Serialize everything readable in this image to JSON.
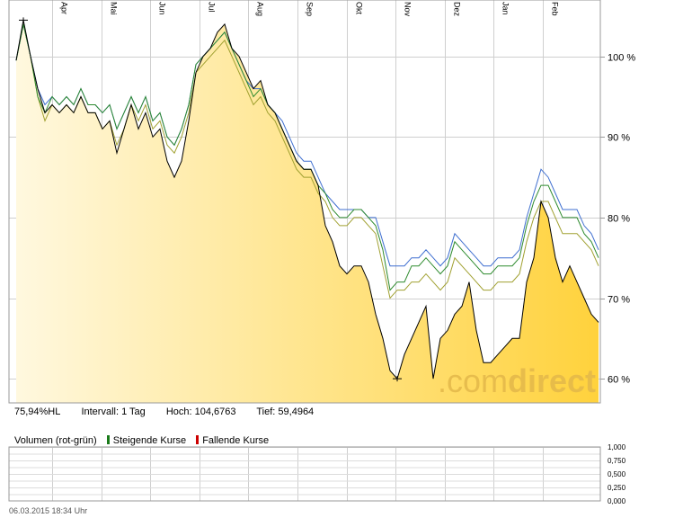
{
  "chart_data": {
    "type": "line",
    "months": [
      "Apr",
      "Mai",
      "Jun",
      "Jul",
      "Aug",
      "Sep",
      "Okt",
      "Nov",
      "Dez",
      "Jan",
      "Feb"
    ],
    "yticks": [
      "100 %",
      "90 %",
      "80 %",
      "70 %",
      "60 %"
    ],
    "ytick_values": [
      100,
      90,
      80,
      70,
      60
    ],
    "ylim": [
      57,
      107
    ],
    "series": [
      {
        "values": [
          99.5,
          104.5,
          100,
          96,
          93,
          94,
          93,
          94,
          93,
          95,
          93,
          93,
          91,
          92,
          88,
          91,
          94,
          91,
          93,
          90,
          91,
          87,
          85,
          87,
          92,
          98,
          100,
          101,
          103,
          104,
          101,
          100,
          98,
          96,
          97,
          94,
          93,
          91,
          89,
          87,
          86,
          86,
          84,
          79,
          77,
          74,
          73,
          74,
          74,
          72,
          68,
          65,
          61,
          60,
          63,
          65,
          67,
          69,
          60,
          65,
          66,
          68,
          69,
          72,
          66,
          62,
          62,
          63,
          64,
          65,
          65,
          72,
          75,
          82,
          80,
          75,
          72,
          74,
          72,
          70,
          68,
          67
        ]
      },
      {
        "values": [
          99.5,
          104,
          100,
          95,
          93,
          95,
          94,
          95,
          94,
          96,
          94,
          94,
          93,
          94,
          91,
          93,
          95,
          93,
          95,
          92,
          93,
          90,
          89,
          91,
          94,
          99,
          100,
          101,
          102,
          103,
          101,
          99,
          97,
          95,
          96,
          94,
          93,
          91,
          89,
          87,
          86,
          86,
          84,
          83,
          81,
          80,
          80,
          81,
          81,
          80,
          79,
          76,
          71,
          72,
          72,
          74,
          74,
          75,
          74,
          73,
          74,
          77,
          76,
          75,
          74,
          73,
          73,
          74,
          74,
          74,
          75,
          79,
          82,
          84,
          84,
          82,
          80,
          80,
          80,
          78,
          77,
          75
        ]
      },
      {
        "values": [
          99.5,
          104,
          100,
          96,
          94,
          95,
          94,
          95,
          94,
          96,
          94,
          94,
          93,
          94,
          91,
          93,
          95,
          93,
          95,
          92,
          93,
          90,
          89,
          91,
          94,
          99,
          100,
          101,
          102,
          103,
          101,
          99,
          97,
          96,
          96,
          94,
          93,
          92,
          90,
          88,
          87,
          87,
          85,
          83,
          82,
          81,
          81,
          81,
          81,
          80,
          80,
          77,
          74,
          74,
          74,
          75,
          75,
          76,
          75,
          74,
          75,
          78,
          77,
          76,
          75,
          74,
          74,
          75,
          75,
          75,
          76,
          80,
          83,
          86,
          85,
          83,
          81,
          81,
          81,
          79,
          78,
          76
        ]
      },
      {
        "values": [
          99.5,
          104,
          100,
          95,
          92,
          94,
          93,
          94,
          93,
          95,
          93,
          93,
          91,
          92,
          89,
          91,
          94,
          92,
          94,
          91,
          92,
          89,
          88,
          90,
          93,
          98,
          99,
          100,
          101,
          102,
          100,
          98,
          96,
          94,
          95,
          93,
          92,
          90,
          88,
          86,
          85,
          85,
          83,
          82,
          80,
          79,
          79,
          80,
          80,
          79,
          78,
          74,
          70,
          71,
          71,
          72,
          72,
          73,
          72,
          71,
          72,
          75,
          74,
          73,
          72,
          71,
          71,
          72,
          72,
          72,
          73,
          77,
          80,
          82,
          82,
          80,
          78,
          78,
          78,
          77,
          76,
          74
        ]
      }
    ],
    "colors": {
      "price": "#000000",
      "green": "#2e8b2e",
      "blue": "#3f6fd0",
      "olive": "#a0a030",
      "fill_top": "#ffd040",
      "fill_bottom": "#fff6da"
    },
    "grid": true
  },
  "stats": {
    "hl": "75,94%HL",
    "interval": "Intervall: 1 Tag",
    "hoch": "Hoch: 104,6763",
    "tief": "Tief: 59,4964"
  },
  "volume": {
    "title": "Volumen (rot-grün)",
    "rising": "Steigende Kurse",
    "falling": "Fallende Kurse",
    "rising_color": "#1a7a1a",
    "falling_color": "#cc0000",
    "yticks": [
      "1,000",
      "0,750",
      "0,500",
      "0,250",
      "0,000"
    ]
  },
  "watermark": {
    "part1": ".com",
    "part2": "direct"
  },
  "footer": {
    "timestamp": "06.03.2015 18:34 Uhr"
  }
}
